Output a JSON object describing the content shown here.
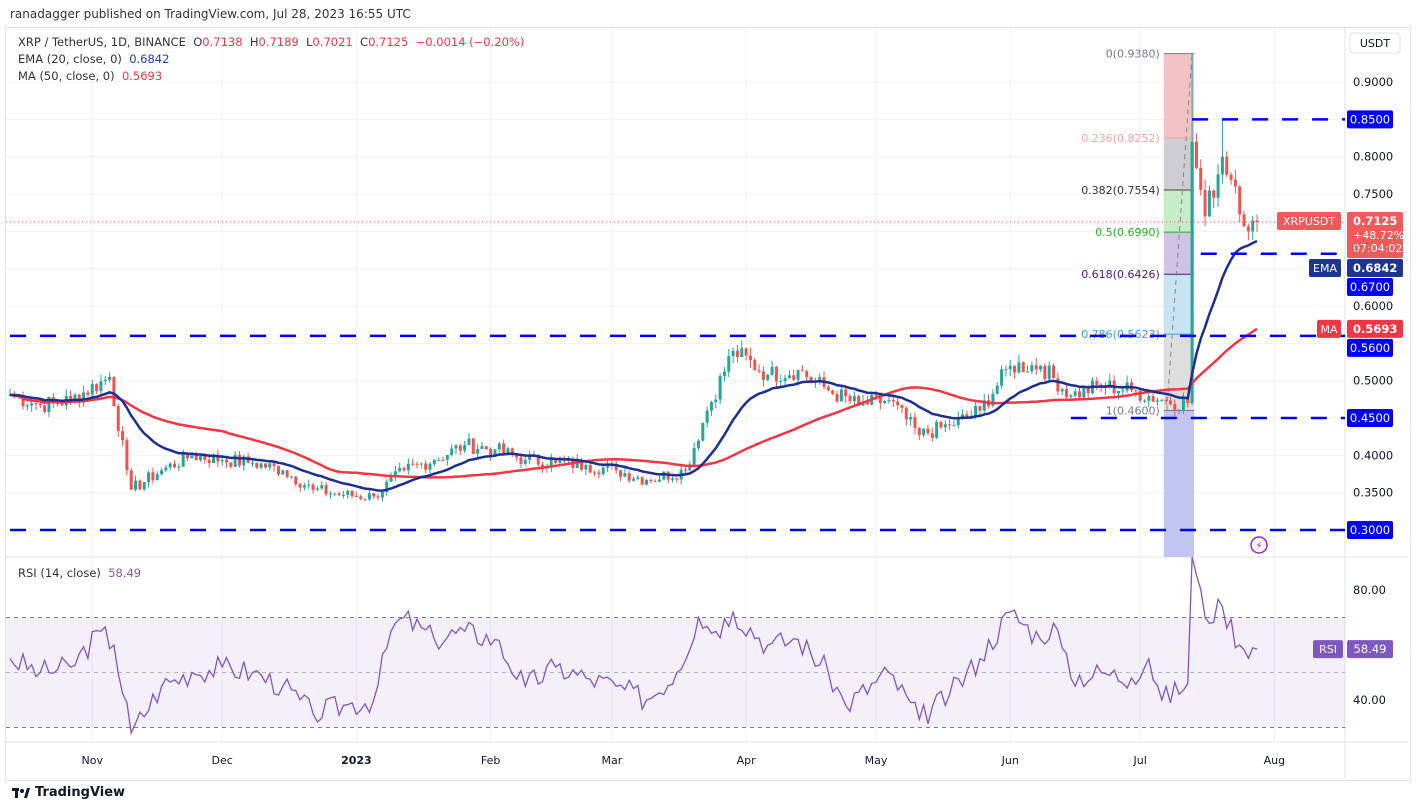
{
  "header": {
    "published": "ranadagger published on TradingView.com, Jul 28, 2023 16:55 UTC"
  },
  "legend": {
    "symbol": "XRP / TetherUS, 1D, BINANCE",
    "o_label": "O",
    "o": "0.7138",
    "h_label": "H",
    "h": "0.7189",
    "l_label": "L",
    "l": "0.7021",
    "c_label": "C",
    "c": "0.7125",
    "change": "−0.0014 (−0.20%)",
    "ema": "EMA (20, close, 0)",
    "ema_val": "0.6842",
    "ma": "MA (50, close, 0)",
    "ma_val": "0.5693",
    "rsi": "RSI (14, close)",
    "rsi_val": "58.49"
  },
  "axis": {
    "currency": "USDT",
    "footer": "TradingView"
  },
  "colors": {
    "up": "#26a69a",
    "down": "#ef5350",
    "ema": "#1c2f8f",
    "ma": "#f23645",
    "levels": "#0000ff",
    "rsi": "#7e57c2"
  },
  "chart_data": {
    "type": "candlestick",
    "price_ticks": [
      "0.9000",
      "0.8000",
      "0.7500",
      "0.6000",
      "0.5000",
      "0.4000",
      "0.3500"
    ],
    "price_tick_values": [
      0.9,
      0.8,
      0.75,
      0.6,
      0.5,
      0.4,
      0.35
    ],
    "ylim": [
      0.265,
      0.97
    ],
    "x_labels": [
      {
        "t": "Nov",
        "d": "2022-11-01"
      },
      {
        "t": "Dec",
        "d": "2022-12-01"
      },
      {
        "t": "2023",
        "d": "2023-01-01"
      },
      {
        "t": "Feb",
        "d": "2023-02-01"
      },
      {
        "t": "Mar",
        "d": "2023-03-01"
      },
      {
        "t": "Apr",
        "d": "2023-04-01"
      },
      {
        "t": "May",
        "d": "2023-05-01"
      },
      {
        "t": "Jun",
        "d": "2023-06-01"
      },
      {
        "t": "Jul",
        "d": "2023-07-01"
      },
      {
        "t": "Aug",
        "d": "2023-08-01"
      }
    ],
    "approx_closes": [
      [
        "2022-10-13",
        0.481
      ],
      [
        "2022-10-20",
        0.467
      ],
      [
        "2022-10-27",
        0.474
      ],
      [
        "2022-11-05",
        0.505
      ],
      [
        "2022-11-09",
        0.38
      ],
      [
        "2022-11-10",
        0.354
      ],
      [
        "2022-11-17",
        0.38
      ],
      [
        "2022-11-24",
        0.4
      ],
      [
        "2022-12-01",
        0.394
      ],
      [
        "2022-12-08",
        0.39
      ],
      [
        "2022-12-15",
        0.38
      ],
      [
        "2022-12-22",
        0.354
      ],
      [
        "2022-12-29",
        0.347
      ],
      [
        "2023-01-05",
        0.345
      ],
      [
        "2023-01-12",
        0.38
      ],
      [
        "2023-01-19",
        0.394
      ],
      [
        "2023-01-26",
        0.414
      ],
      [
        "2023-02-02",
        0.408
      ],
      [
        "2023-02-09",
        0.394
      ],
      [
        "2023-02-16",
        0.39
      ],
      [
        "2023-02-23",
        0.387
      ],
      [
        "2023-03-02",
        0.38
      ],
      [
        "2023-03-09",
        0.367
      ],
      [
        "2023-03-18",
        0.38
      ],
      [
        "2023-03-23",
        0.46
      ],
      [
        "2023-03-29",
        0.54
      ],
      [
        "2023-04-06",
        0.508
      ],
      [
        "2023-04-13",
        0.514
      ],
      [
        "2023-04-20",
        0.487
      ],
      [
        "2023-04-27",
        0.467
      ],
      [
        "2023-05-04",
        0.474
      ],
      [
        "2023-05-11",
        0.427
      ],
      [
        "2023-05-18",
        0.44
      ],
      [
        "2023-05-25",
        0.46
      ],
      [
        "2023-06-01",
        0.52
      ],
      [
        "2023-06-08",
        0.52
      ],
      [
        "2023-06-15",
        0.48
      ],
      [
        "2023-06-22",
        0.494
      ],
      [
        "2023-06-29",
        0.487
      ],
      [
        "2023-07-06",
        0.474
      ],
      [
        "2023-07-12",
        0.47
      ],
      [
        "2023-07-13",
        0.82
      ],
      [
        "2023-07-16",
        0.72
      ],
      [
        "2023-07-20",
        0.8
      ],
      [
        "2023-07-23",
        0.76
      ],
      [
        "2023-07-26",
        0.7
      ],
      [
        "2023-07-28",
        0.7125
      ]
    ],
    "key_levels": [
      {
        "v": 0.85,
        "label": "0.8500",
        "from": "2023-07-13"
      },
      {
        "v": 0.67,
        "label": "0.6700",
        "from": "2023-07-15"
      },
      {
        "v": 0.56,
        "label": "0.5600",
        "from": "2022-10-13"
      },
      {
        "v": 0.45,
        "label": "0.4500",
        "from": "2023-06-15"
      },
      {
        "v": 0.3,
        "label": "0.3000",
        "from": "2022-10-13"
      }
    ],
    "fib": {
      "from": "2023-07-06",
      "to": "2023-07-13",
      "levels": [
        {
          "r": "0",
          "v": 0.938,
          "label": "0(0.9380)",
          "line": "#787b86",
          "fill": "#f2bcbc"
        },
        {
          "r": "0.236",
          "v": 0.8252,
          "label": "0.236(0.8252)",
          "line": "#f7a3a3",
          "fill": "#c9c9cd"
        },
        {
          "r": "0.382",
          "v": 0.7554,
          "label": "0.382(0.7554)",
          "line": "#444",
          "fill": "#c0eac2"
        },
        {
          "r": "0.5",
          "v": 0.699,
          "label": "0.5(0.6990)",
          "line": "#22b322",
          "fill": "#cbbde2"
        },
        {
          "r": "0.618",
          "v": 0.6426,
          "label": "0.618(0.6426)",
          "line": "#4a148c",
          "fill": "#c3e0f2"
        },
        {
          "r": "0.786",
          "v": 0.5623,
          "label": "0.786(0.5623)",
          "line": "#3aa0d8",
          "fill": "#dadada"
        },
        {
          "r": "1",
          "v": 0.46,
          "label": "1(0.4600)",
          "line": "#787b86",
          "fill": "#bcbff0"
        }
      ]
    },
    "price_tags": [
      {
        "label": "XRPUSDT",
        "value": "0.7125",
        "extra": [
          "+48.72%",
          "07:04:02"
        ],
        "v": 0.7125,
        "color": "#f05a5a"
      },
      {
        "label": "EMA",
        "value": "0.6842",
        "v": 0.6842,
        "color": "#1c3590"
      },
      {
        "label": "MA",
        "value": "0.5693",
        "v": 0.5693,
        "color": "#f23645"
      }
    ],
    "rsi": {
      "ticks": [
        "80.00",
        "40.00"
      ],
      "tick_values": [
        80,
        40
      ],
      "upper": 70,
      "lower": 30,
      "mid": 50,
      "approx_values": [
        [
          "2022-10-13",
          55
        ],
        [
          "2022-10-20",
          50
        ],
        [
          "2022-10-27",
          52
        ],
        [
          "2022-11-03",
          65
        ],
        [
          "2022-11-06",
          60
        ],
        [
          "2022-11-10",
          28
        ],
        [
          "2022-11-17",
          45
        ],
        [
          "2022-11-24",
          50
        ],
        [
          "2022-12-01",
          52
        ],
        [
          "2022-12-08",
          50
        ],
        [
          "2022-12-15",
          45
        ],
        [
          "2022-12-22",
          35
        ],
        [
          "2022-12-29",
          38
        ],
        [
          "2023-01-05",
          40
        ],
        [
          "2023-01-09",
          65
        ],
        [
          "2023-01-12",
          70
        ],
        [
          "2023-01-19",
          62
        ],
        [
          "2023-01-26",
          65
        ],
        [
          "2023-02-02",
          62
        ],
        [
          "2023-02-09",
          45
        ],
        [
          "2023-02-16",
          52
        ],
        [
          "2023-02-23",
          48
        ],
        [
          "2023-03-02",
          45
        ],
        [
          "2023-03-09",
          40
        ],
        [
          "2023-03-16",
          50
        ],
        [
          "2023-03-21",
          70
        ],
        [
          "2023-03-25",
          65
        ],
        [
          "2023-03-29",
          72
        ],
        [
          "2023-04-06",
          60
        ],
        [
          "2023-04-13",
          62
        ],
        [
          "2023-04-20",
          50
        ],
        [
          "2023-04-24",
          38
        ],
        [
          "2023-05-04",
          50
        ],
        [
          "2023-05-11",
          33
        ],
        [
          "2023-05-18",
          42
        ],
        [
          "2023-05-25",
          55
        ],
        [
          "2023-06-01",
          72
        ],
        [
          "2023-06-08",
          62
        ],
        [
          "2023-06-11",
          68
        ],
        [
          "2023-06-15",
          48
        ],
        [
          "2023-06-22",
          50
        ],
        [
          "2023-06-29",
          48
        ],
        [
          "2023-07-03",
          55
        ],
        [
          "2023-07-06",
          40
        ],
        [
          "2023-07-12",
          46
        ],
        [
          "2023-07-13",
          92
        ],
        [
          "2023-07-16",
          70
        ],
        [
          "2023-07-20",
          74
        ],
        [
          "2023-07-24",
          60
        ],
        [
          "2023-07-28",
          58.49
        ]
      ]
    }
  }
}
